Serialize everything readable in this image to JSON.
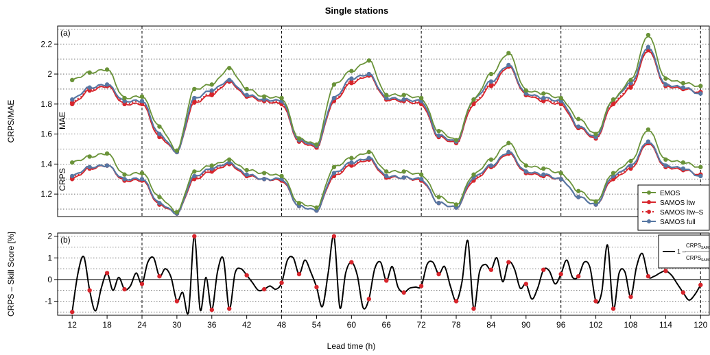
{
  "chart_data": [
    {
      "type": "line",
      "panel": "(a)",
      "title": "Single stations",
      "ylabel": "CRPS/MAE",
      "ylim": [
        1.05,
        2.32
      ],
      "yticks": [
        1.2,
        1.4,
        1.6,
        1.8,
        2.0,
        2.2
      ],
      "group_labels": [
        "MAE",
        "CRPS"
      ],
      "grid": true,
      "legend_position": "right",
      "colors": {
        "EMOS": "#6a9339",
        "SAMOS ltw": "#d7252c",
        "SAMOS ltw–S": "#d7252c",
        "SAMOS full": "#5777a3"
      },
      "legend": [
        "EMOS",
        "SAMOS ltw",
        "SAMOS ltw–S",
        "SAMOS full"
      ],
      "x": [
        12,
        15,
        18,
        21,
        24,
        27,
        30,
        33,
        36,
        39,
        42,
        45,
        48,
        51,
        54,
        57,
        60,
        63,
        66,
        69,
        72,
        75,
        78,
        81,
        84,
        87,
        90,
        93,
        96,
        99,
        102,
        105,
        108,
        111,
        114,
        117,
        120
      ],
      "series": [
        {
          "name": "EMOS",
          "group": "MAE",
          "values": [
            1.96,
            2.01,
            2.03,
            1.84,
            1.85,
            1.65,
            1.49,
            1.9,
            1.93,
            2.04,
            1.9,
            1.85,
            1.84,
            1.57,
            1.53,
            1.93,
            2.02,
            2.09,
            1.86,
            1.86,
            1.84,
            1.62,
            1.56,
            1.83,
            2.0,
            2.14,
            1.89,
            1.87,
            1.84,
            1.7,
            1.6,
            1.83,
            1.96,
            2.26,
            1.97,
            1.94,
            1.92
          ]
        },
        {
          "name": "SAMOS ltw",
          "group": "MAE",
          "values": [
            1.8,
            1.89,
            1.92,
            1.8,
            1.8,
            1.58,
            1.48,
            1.81,
            1.86,
            1.95,
            1.85,
            1.82,
            1.8,
            1.55,
            1.51,
            1.82,
            1.94,
            1.99,
            1.83,
            1.82,
            1.8,
            1.58,
            1.54,
            1.8,
            1.92,
            2.05,
            1.86,
            1.82,
            1.8,
            1.64,
            1.57,
            1.8,
            1.91,
            2.16,
            1.92,
            1.9,
            1.88
          ]
        },
        {
          "name": "SAMOS ltw–S",
          "group": "MAE",
          "values": [
            1.81,
            1.9,
            1.92,
            1.81,
            1.81,
            1.59,
            1.48,
            1.82,
            1.87,
            1.95,
            1.85,
            1.82,
            1.81,
            1.55,
            1.51,
            1.83,
            1.95,
            1.99,
            1.83,
            1.82,
            1.81,
            1.58,
            1.55,
            1.81,
            1.93,
            2.05,
            1.86,
            1.83,
            1.81,
            1.64,
            1.58,
            1.81,
            1.92,
            2.17,
            1.92,
            1.9,
            1.88
          ]
        },
        {
          "name": "SAMOS full",
          "group": "MAE",
          "values": [
            1.83,
            1.91,
            1.93,
            1.82,
            1.82,
            1.6,
            1.48,
            1.84,
            1.89,
            1.96,
            1.86,
            1.83,
            1.82,
            1.56,
            1.52,
            1.84,
            1.97,
            2.0,
            1.84,
            1.83,
            1.82,
            1.59,
            1.55,
            1.83,
            1.95,
            2.06,
            1.87,
            1.84,
            1.82,
            1.65,
            1.58,
            1.83,
            1.94,
            2.18,
            1.93,
            1.91,
            1.87
          ]
        },
        {
          "name": "EMOS",
          "group": "CRPS",
          "values": [
            1.41,
            1.45,
            1.47,
            1.33,
            1.34,
            1.18,
            1.08,
            1.35,
            1.39,
            1.43,
            1.36,
            1.34,
            1.32,
            1.14,
            1.11,
            1.38,
            1.44,
            1.48,
            1.35,
            1.35,
            1.33,
            1.18,
            1.13,
            1.33,
            1.43,
            1.54,
            1.39,
            1.37,
            1.34,
            1.22,
            1.15,
            1.34,
            1.42,
            1.63,
            1.43,
            1.41,
            1.38
          ]
        },
        {
          "name": "SAMOS ltw",
          "group": "CRPS",
          "values": [
            1.3,
            1.37,
            1.39,
            1.29,
            1.29,
            1.13,
            1.07,
            1.3,
            1.35,
            1.4,
            1.32,
            1.3,
            1.29,
            1.12,
            1.09,
            1.32,
            1.39,
            1.43,
            1.31,
            1.31,
            1.29,
            1.14,
            1.11,
            1.29,
            1.38,
            1.47,
            1.34,
            1.32,
            1.3,
            1.18,
            1.13,
            1.3,
            1.37,
            1.54,
            1.38,
            1.36,
            1.33
          ]
        },
        {
          "name": "SAMOS ltw–S",
          "group": "CRPS",
          "values": [
            1.31,
            1.37,
            1.39,
            1.29,
            1.29,
            1.13,
            1.07,
            1.31,
            1.36,
            1.4,
            1.32,
            1.3,
            1.29,
            1.12,
            1.09,
            1.33,
            1.4,
            1.43,
            1.31,
            1.31,
            1.29,
            1.14,
            1.11,
            1.3,
            1.38,
            1.47,
            1.34,
            1.32,
            1.3,
            1.18,
            1.13,
            1.31,
            1.38,
            1.54,
            1.38,
            1.36,
            1.33
          ]
        },
        {
          "name": "SAMOS full",
          "group": "CRPS",
          "values": [
            1.32,
            1.38,
            1.39,
            1.3,
            1.3,
            1.14,
            1.07,
            1.32,
            1.37,
            1.41,
            1.33,
            1.3,
            1.3,
            1.12,
            1.09,
            1.34,
            1.41,
            1.44,
            1.32,
            1.31,
            1.3,
            1.14,
            1.11,
            1.31,
            1.39,
            1.48,
            1.35,
            1.33,
            1.3,
            1.18,
            1.13,
            1.32,
            1.39,
            1.55,
            1.39,
            1.37,
            1.32
          ]
        }
      ]
    },
    {
      "type": "line",
      "panel": "(b)",
      "xlabel": "Lead time (h)",
      "ylabel": "CRPS – Skill Score [%]",
      "ylim": [
        -1.65,
        2.15
      ],
      "yticks": [
        -1,
        0,
        1,
        2
      ],
      "xticks": [
        12,
        18,
        24,
        30,
        36,
        42,
        48,
        54,
        60,
        66,
        72,
        78,
        84,
        90,
        96,
        102,
        108,
        114,
        120
      ],
      "vlines": [
        24,
        48,
        72,
        96,
        120
      ],
      "legend": {
        "prefix": "1 –",
        "numerator": "CRPS",
        "numerator_sub": "SAMOS–full",
        "denominator": "CRPS",
        "denominator_sub": "SAMOS–ltw"
      },
      "line_color": "#000000",
      "marker_color": "#d7252c",
      "x": [
        12,
        13,
        14,
        15,
        16,
        17,
        18,
        19,
        20,
        21,
        22,
        23,
        24,
        25,
        26,
        27,
        28,
        29,
        30,
        31,
        32,
        33,
        34,
        35,
        36,
        37,
        38,
        39,
        40,
        41,
        42,
        43,
        44,
        45,
        46,
        47,
        48,
        49,
        50,
        51,
        52,
        53,
        54,
        55,
        56,
        57,
        58,
        59,
        60,
        61,
        62,
        63,
        64,
        65,
        66,
        67,
        68,
        69,
        70,
        71,
        72,
        73,
        74,
        75,
        76,
        77,
        78,
        79,
        80,
        81,
        82,
        83,
        84,
        85,
        86,
        87,
        88,
        89,
        90,
        91,
        92,
        93,
        94,
        95,
        96,
        97,
        98,
        99,
        100,
        101,
        102,
        103,
        104,
        105,
        106,
        107,
        108,
        109,
        110,
        111,
        112,
        113,
        114,
        115,
        116,
        117,
        118,
        119,
        120
      ],
      "values": [
        -1.5,
        0.3,
        1.05,
        -0.5,
        -1.45,
        -0.4,
        0.3,
        -0.5,
        0.1,
        -0.45,
        -0.3,
        0.3,
        -0.2,
        0.8,
        1.0,
        0.15,
        0.5,
        0.1,
        -1.0,
        -0.6,
        -1.5,
        2.0,
        -1.4,
        0.1,
        -1.4,
        0.4,
        0.95,
        -1.35,
        0.3,
        0.5,
        0.2,
        -0.15,
        -0.5,
        -0.45,
        -0.3,
        -0.45,
        -0.15,
        0.9,
        1.0,
        0.25,
        0.9,
        0.35,
        -0.35,
        -1.25,
        0.3,
        2.0,
        -1.3,
        0.3,
        0.8,
        0.2,
        -1.3,
        -0.9,
        0.5,
        0.8,
        -0.05,
        0.6,
        -0.35,
        -0.6,
        -0.4,
        -0.35,
        -0.3,
        0.7,
        0.8,
        0.25,
        0.6,
        -0.3,
        -1.0,
        -0.1,
        1.8,
        -1.35,
        0.35,
        0.7,
        0.45,
        1.0,
        -0.1,
        0.8,
        0.5,
        -0.4,
        -0.2,
        -0.9,
        -0.4,
        0.45,
        0.4,
        -0.2,
        0.25,
        0.9,
        0.1,
        0.15,
        0.8,
        0.55,
        -1.0,
        -0.6,
        1.6,
        -1.35,
        0.3,
        0.35,
        -0.8,
        0.6,
        1.2,
        0.15,
        0.15,
        0.3,
        0.4,
        0.2,
        -0.2,
        -0.6,
        -0.95,
        -0.7,
        -0.25
      ],
      "markers": [
        12,
        15,
        18,
        21,
        24,
        27,
        30,
        33,
        36,
        39,
        42,
        45,
        48,
        51,
        54,
        57,
        60,
        63,
        66,
        69,
        72,
        75,
        78,
        81,
        84,
        87,
        90,
        93,
        96,
        99,
        102,
        105,
        108,
        111,
        114,
        117,
        120
      ]
    }
  ]
}
